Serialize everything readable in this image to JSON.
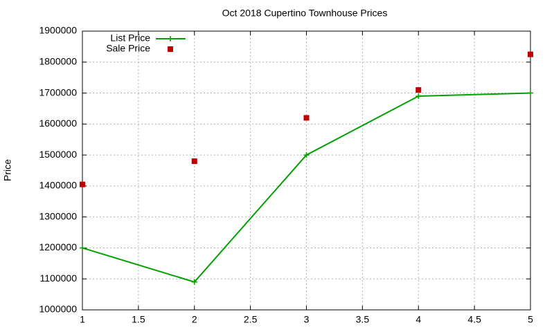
{
  "chart_data": {
    "type": "line",
    "title": "Oct 2018 Cupertino Townhouse Prices",
    "y_label": "Price",
    "x": [
      1,
      2,
      3,
      4,
      5
    ],
    "series": [
      {
        "name": "List Price",
        "color": "#00a000",
        "style": "linespoints",
        "values": [
          1200000,
          1090000,
          1500000,
          1690000,
          1700000
        ]
      },
      {
        "name": "Sale Price",
        "color": "#c00000",
        "style": "points",
        "values": [
          1405000,
          1480000,
          1620000,
          1710000,
          1825000
        ]
      }
    ],
    "xlim": [
      1,
      5
    ],
    "xticks": [
      1,
      1.5,
      2,
      2.5,
      3,
      3.5,
      4,
      4.5,
      5
    ],
    "ylim": [
      1000000,
      1900000
    ],
    "yticks": [
      1000000,
      1100000,
      1200000,
      1300000,
      1400000,
      1500000,
      1600000,
      1700000,
      1800000,
      1900000
    ],
    "grid": true,
    "legend": "top-left"
  }
}
